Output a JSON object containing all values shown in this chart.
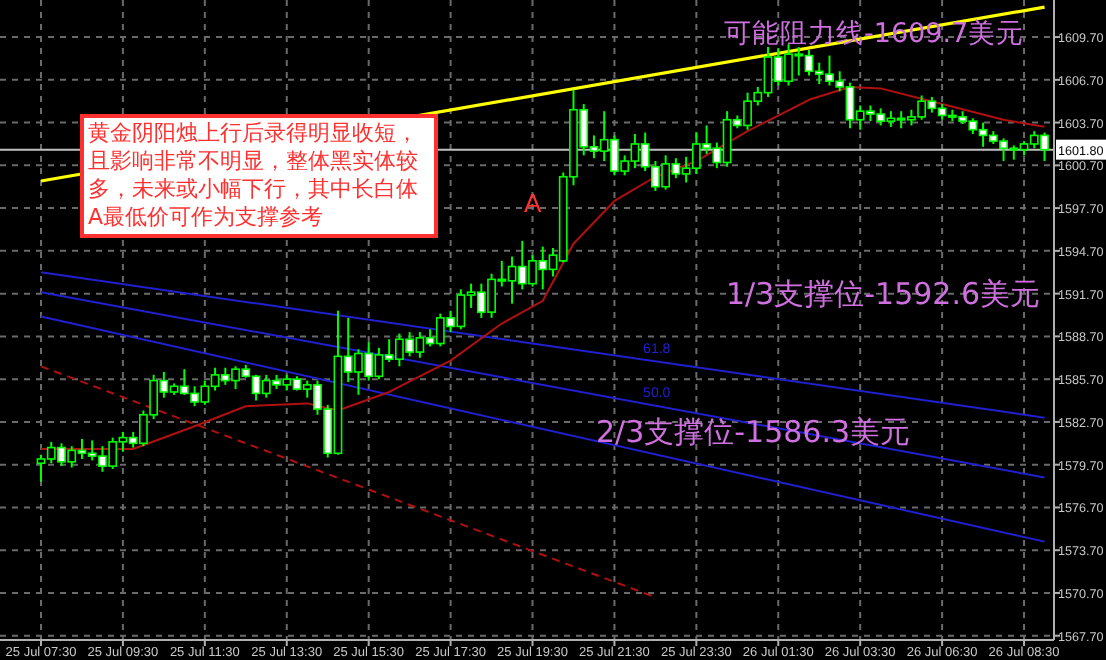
{
  "chart_data": {
    "type": "candlestick",
    "color": "#00ff00",
    "categories": [
      "25 Jul 07:30",
      null,
      null,
      null,
      null,
      null,
      null,
      null,
      "25 Jul 09:30",
      null,
      null,
      null,
      null,
      null,
      null,
      null,
      "25 Jul 11:30",
      null,
      null,
      null,
      null,
      null,
      null,
      null,
      "25 Jul 13:30",
      null,
      null,
      null,
      null,
      null,
      null,
      null,
      "25 Jul 15:30",
      null,
      null,
      null,
      null,
      null,
      null,
      null,
      "25 Jul 17:30",
      null,
      null,
      null,
      null,
      null,
      null,
      null,
      "25 Jul 19:30",
      null,
      null,
      null,
      null,
      null,
      null,
      null,
      "25 Jul 21:30",
      null,
      null,
      null,
      null,
      null,
      null,
      null,
      "25 Jul 23:30",
      null,
      null,
      null,
      null,
      null,
      null,
      null,
      "26 Jul 01:30",
      null,
      null,
      null,
      null,
      null,
      null,
      null,
      "26 Jul 03:30",
      null,
      null,
      null,
      null,
      null,
      null,
      null,
      "26 Jul 06:30",
      null,
      null,
      null,
      null,
      null,
      null,
      null,
      "26 Jul 08:30",
      null,
      null
    ],
    "ohlc": [
      [
        1579.8,
        1580.4,
        1578.5,
        1580.1
      ],
      [
        1580.1,
        1581.3,
        1579.8,
        1580.9
      ],
      [
        1580.9,
        1581.2,
        1579.6,
        1579.9
      ],
      [
        1579.9,
        1581.0,
        1579.5,
        1580.7
      ],
      [
        1580.7,
        1581.5,
        1580.1,
        1580.5
      ],
      [
        1580.5,
        1581.4,
        1580.0,
        1580.3
      ],
      [
        1580.3,
        1581.0,
        1579.2,
        1579.6
      ],
      [
        1579.6,
        1581.6,
        1579.4,
        1581.3
      ],
      [
        1581.3,
        1582.0,
        1580.6,
        1581.6
      ],
      [
        1581.6,
        1582.0,
        1580.9,
        1581.2
      ],
      [
        1581.2,
        1583.5,
        1581.0,
        1583.2
      ],
      [
        1583.2,
        1586.0,
        1582.9,
        1585.6
      ],
      [
        1585.6,
        1586.2,
        1584.4,
        1584.8
      ],
      [
        1584.8,
        1585.4,
        1584.6,
        1585.2
      ],
      [
        1585.2,
        1586.4,
        1584.6,
        1584.7
      ],
      [
        1584.7,
        1585.2,
        1583.8,
        1584.1
      ],
      [
        1584.1,
        1585.6,
        1583.9,
        1585.2
      ],
      [
        1585.2,
        1586.5,
        1584.9,
        1586.0
      ],
      [
        1586.0,
        1586.5,
        1585.3,
        1585.6
      ],
      [
        1585.6,
        1586.6,
        1585.0,
        1586.4
      ],
      [
        1586.4,
        1586.7,
        1585.8,
        1585.9
      ],
      [
        1585.9,
        1586.0,
        1584.2,
        1584.7
      ],
      [
        1584.7,
        1586.0,
        1584.4,
        1585.6
      ],
      [
        1585.6,
        1586.0,
        1585.0,
        1585.3
      ],
      [
        1585.3,
        1586.0,
        1584.9,
        1585.7
      ],
      [
        1585.7,
        1585.9,
        1584.9,
        1585.0
      ],
      [
        1585.0,
        1585.6,
        1584.4,
        1585.3
      ],
      [
        1585.3,
        1585.6,
        1583.2,
        1583.6
      ],
      [
        1583.6,
        1583.9,
        1580.2,
        1580.5
      ],
      [
        1580.5,
        1590.5,
        1580.4,
        1587.3
      ],
      [
        1587.3,
        1590.0,
        1585.5,
        1586.2
      ],
      [
        1586.2,
        1587.8,
        1584.6,
        1587.5
      ],
      [
        1587.5,
        1588.3,
        1585.6,
        1585.9
      ],
      [
        1585.9,
        1587.9,
        1585.7,
        1587.4
      ],
      [
        1587.4,
        1588.5,
        1586.9,
        1587.1
      ],
      [
        1587.1,
        1588.9,
        1586.6,
        1588.5
      ],
      [
        1588.5,
        1589.0,
        1587.3,
        1587.6
      ],
      [
        1587.6,
        1589.0,
        1587.2,
        1588.6
      ],
      [
        1588.6,
        1589.2,
        1588.0,
        1588.2
      ],
      [
        1588.2,
        1590.3,
        1588.0,
        1590.0
      ],
      [
        1590.0,
        1590.5,
        1589.0,
        1589.4
      ],
      [
        1589.4,
        1592.0,
        1589.2,
        1591.6
      ],
      [
        1591.6,
        1592.4,
        1590.7,
        1591.8
      ],
      [
        1591.8,
        1592.4,
        1590.0,
        1590.4
      ],
      [
        1590.4,
        1593.1,
        1590.0,
        1592.7
      ],
      [
        1592.7,
        1594.0,
        1592.2,
        1592.6
      ],
      [
        1592.6,
        1594.3,
        1591.0,
        1593.6
      ],
      [
        1593.6,
        1595.4,
        1592.0,
        1592.4
      ],
      [
        1592.4,
        1594.4,
        1592.2,
        1594.0
      ],
      [
        1594.0,
        1595.0,
        1592.0,
        1593.4
      ],
      [
        1593.4,
        1594.9,
        1592.9,
        1594.4
      ],
      [
        1594.0,
        1600.2,
        1593.9,
        1599.9
      ],
      [
        1599.9,
        1606.0,
        1599.3,
        1604.6
      ],
      [
        1604.6,
        1605.0,
        1601.4,
        1602.0
      ],
      [
        1602.0,
        1602.8,
        1601.2,
        1601.7
      ],
      [
        1601.7,
        1604.5,
        1601.0,
        1602.5
      ],
      [
        1602.5,
        1602.8,
        1600.0,
        1600.3
      ],
      [
        1600.3,
        1601.4,
        1600.0,
        1601.0
      ],
      [
        1601.0,
        1602.9,
        1600.5,
        1602.2
      ],
      [
        1602.2,
        1603.0,
        1600.3,
        1600.6
      ],
      [
        1600.6,
        1601.0,
        1598.9,
        1599.2
      ],
      [
        1599.2,
        1601.4,
        1599.0,
        1600.8
      ],
      [
        1600.8,
        1601.2,
        1599.8,
        1600.1
      ],
      [
        1600.1,
        1601.3,
        1599.5,
        1600.5
      ],
      [
        1600.5,
        1603.0,
        1600.1,
        1602.2
      ],
      [
        1602.2,
        1603.5,
        1601.5,
        1601.9
      ],
      [
        1601.9,
        1602.3,
        1600.5,
        1600.9
      ],
      [
        1600.9,
        1604.5,
        1600.6,
        1603.9
      ],
      [
        1603.9,
        1604.2,
        1603.3,
        1603.5
      ],
      [
        1603.5,
        1605.8,
        1603.2,
        1605.2
      ],
      [
        1605.2,
        1606.2,
        1604.9,
        1605.8
      ],
      [
        1605.8,
        1609.0,
        1605.5,
        1608.3
      ],
      [
        1608.3,
        1608.9,
        1606.3,
        1606.6
      ],
      [
        1606.6,
        1609.2,
        1606.3,
        1608.5
      ],
      [
        1608.5,
        1609.0,
        1607.0,
        1608.4
      ],
      [
        1608.4,
        1608.8,
        1607.0,
        1607.3
      ],
      [
        1607.3,
        1607.9,
        1606.4,
        1607.1
      ],
      [
        1607.1,
        1608.4,
        1606.3,
        1606.6
      ],
      [
        1606.6,
        1607.3,
        1605.9,
        1606.2
      ],
      [
        1606.2,
        1606.5,
        1603.3,
        1603.9
      ],
      [
        1603.9,
        1604.9,
        1603.2,
        1604.5
      ],
      [
        1604.5,
        1604.9,
        1603.8,
        1604.3
      ],
      [
        1604.3,
        1604.7,
        1603.5,
        1603.8
      ],
      [
        1603.8,
        1604.5,
        1603.4,
        1604.0
      ],
      [
        1604.0,
        1604.5,
        1603.3,
        1603.9
      ],
      [
        1603.9,
        1604.6,
        1603.5,
        1604.1
      ],
      [
        1604.1,
        1605.6,
        1603.9,
        1605.2
      ],
      [
        1605.2,
        1605.5,
        1604.4,
        1604.7
      ],
      [
        1604.7,
        1605.0,
        1603.9,
        1604.2
      ],
      [
        1604.2,
        1604.6,
        1603.8,
        1604.1
      ],
      [
        1604.1,
        1604.5,
        1603.6,
        1603.8
      ],
      [
        1603.8,
        1604.0,
        1602.9,
        1603.2
      ],
      [
        1603.2,
        1603.7,
        1602.0,
        1602.8
      ],
      [
        1602.8,
        1603.1,
        1602.2,
        1602.4
      ],
      [
        1602.4,
        1602.6,
        1601.0,
        1601.9
      ],
      [
        1601.9,
        1602.1,
        1601.1,
        1601.8
      ],
      [
        1601.8,
        1602.4,
        1601.4,
        1602.2
      ],
      [
        1602.2,
        1603.1,
        1601.9,
        1602.8
      ],
      [
        1602.8,
        1603.0,
        1601.0,
        1601.8
      ]
    ],
    "series": [
      {
        "type": "line",
        "color": "#ffff00",
        "values": [
          1599.6,
          null,
          null,
          null,
          null,
          null,
          null,
          null,
          null,
          null,
          null,
          null,
          null,
          null,
          null,
          null,
          null,
          null,
          null,
          null,
          null,
          null,
          null,
          null,
          null,
          null,
          null,
          null,
          null,
          null,
          null,
          null,
          null,
          null,
          null,
          null,
          null,
          null,
          null,
          null,
          null,
          null,
          null,
          null,
          null,
          null,
          null,
          null,
          null,
          null,
          null,
          null,
          null,
          null,
          null,
          null,
          null,
          null,
          null,
          null,
          null,
          null,
          null,
          null,
          null,
          null,
          null,
          null,
          null,
          null,
          null,
          null,
          null,
          null,
          null,
          null,
          null,
          null,
          null,
          null,
          null,
          null,
          null,
          null,
          null,
          null,
          null,
          null,
          null,
          null,
          null,
          null,
          null,
          null,
          null,
          null,
          null,
          null,
          1611.8
        ]
      },
      {
        "type": "line",
        "name": "61.8",
        "color": "#2020d0",
        "values": [
          1593.2,
          null,
          null,
          null,
          null,
          null,
          null,
          null,
          null,
          null,
          null,
          null,
          null,
          null,
          null,
          null,
          null,
          null,
          null,
          null,
          null,
          null,
          null,
          null,
          null,
          null,
          null,
          null,
          null,
          null,
          null,
          null,
          null,
          null,
          null,
          null,
          null,
          null,
          null,
          null,
          null,
          null,
          null,
          null,
          null,
          null,
          null,
          null,
          null,
          null,
          null,
          null,
          null,
          null,
          null,
          null,
          null,
          null,
          null,
          null,
          null,
          null,
          null,
          null,
          null,
          null,
          null,
          null,
          null,
          null,
          null,
          null,
          null,
          null,
          null,
          null,
          null,
          null,
          null,
          null,
          null,
          null,
          null,
          null,
          null,
          null,
          null,
          null,
          null,
          null,
          null,
          null,
          null,
          null,
          null,
          null,
          null,
          null,
          1583.0
        ]
      },
      {
        "type": "line",
        "name": "50.0",
        "color": "#2020d0",
        "values": [
          1591.8,
          null,
          null,
          null,
          null,
          null,
          null,
          null,
          null,
          null,
          null,
          null,
          null,
          null,
          null,
          null,
          null,
          null,
          null,
          null,
          null,
          null,
          null,
          null,
          null,
          null,
          null,
          null,
          null,
          null,
          null,
          null,
          null,
          null,
          null,
          null,
          null,
          null,
          null,
          null,
          null,
          null,
          null,
          null,
          null,
          null,
          null,
          null,
          null,
          null,
          null,
          null,
          null,
          null,
          null,
          null,
          null,
          null,
          null,
          null,
          null,
          null,
          null,
          null,
          null,
          null,
          null,
          null,
          null,
          null,
          null,
          null,
          null,
          null,
          null,
          null,
          null,
          null,
          null,
          null,
          null,
          null,
          null,
          null,
          null,
          null,
          null,
          null,
          null,
          null,
          null,
          null,
          null,
          null,
          null,
          null,
          null,
          null,
          1578.8
        ]
      },
      {
        "type": "line",
        "color": "#2020d0",
        "values": [
          1590.1,
          null,
          null,
          null,
          null,
          null,
          null,
          null,
          null,
          null,
          null,
          null,
          null,
          null,
          null,
          null,
          null,
          null,
          null,
          null,
          null,
          null,
          null,
          null,
          null,
          null,
          null,
          null,
          null,
          null,
          null,
          null,
          null,
          null,
          null,
          null,
          null,
          null,
          null,
          null,
          null,
          null,
          null,
          null,
          null,
          null,
          null,
          null,
          null,
          null,
          null,
          null,
          null,
          null,
          null,
          null,
          null,
          null,
          null,
          null,
          null,
          null,
          null,
          null,
          null,
          null,
          null,
          null,
          null,
          null,
          null,
          null,
          null,
          null,
          null,
          null,
          null,
          null,
          null,
          null,
          null,
          null,
          null,
          null,
          null,
          null,
          null,
          null,
          null,
          null,
          null,
          null,
          null,
          null,
          null,
          null,
          null,
          null,
          1574.3
        ]
      },
      {
        "type": "line",
        "color": "#b01010",
        "line_style": "dashed",
        "values": [
          1586.6,
          null,
          null,
          null,
          null,
          null,
          null,
          null,
          null,
          null,
          null,
          null,
          null,
          null,
          null,
          null,
          null,
          null,
          null,
          null,
          null,
          null,
          null,
          null,
          null,
          null,
          null,
          null,
          null,
          null,
          null,
          null,
          null,
          null,
          null,
          null,
          null,
          null,
          null,
          null,
          null,
          null,
          null,
          null,
          null,
          null,
          null,
          null,
          null,
          null,
          null,
          null,
          null,
          null,
          null,
          null,
          null,
          null,
          null,
          null,
          1570.4,
          null,
          null,
          null,
          null,
          null,
          null,
          null,
          null,
          null,
          null,
          null,
          null,
          null,
          null,
          null,
          null,
          null,
          null,
          null,
          null,
          null,
          null,
          null,
          null,
          null,
          null,
          null,
          null,
          null,
          null,
          null,
          null,
          null,
          null,
          null,
          null,
          null,
          null
        ]
      },
      {
        "type": "line",
        "color": "#b01010",
        "values": [
          1580.8,
          null,
          null,
          null,
          null,
          null,
          null,
          null,
          null,
          1580.8,
          null,
          null,
          null,
          null,
          null,
          1582.4,
          null,
          null,
          null,
          null,
          1583.8,
          null,
          null,
          null,
          null,
          null,
          1584.0,
          null,
          null,
          1583.5,
          null,
          null,
          null,
          null,
          1584.8,
          null,
          null,
          null,
          null,
          null,
          1587.0,
          null,
          null,
          null,
          null,
          1589.6,
          null,
          null,
          null,
          1591.2,
          null,
          null,
          1595.2,
          null,
          null,
          null,
          1598.2,
          null,
          null,
          null,
          1599.9,
          null,
          null,
          null,
          1601.0,
          null,
          null,
          null,
          null,
          1603.1,
          null,
          null,
          null,
          null,
          null,
          1605.3,
          null,
          null,
          null,
          1606.2,
          null,
          null,
          1606.1,
          null,
          null,
          null,
          null,
          null,
          1605.0,
          null,
          null,
          null,
          null,
          null,
          1603.9,
          null,
          null,
          null,
          1603.4
        ]
      }
    ],
    "ylim": [
      1567.4,
      1612.3
    ],
    "yticks": [
      {
        "value": 1567.7,
        "label": "1567.70"
      },
      {
        "value": 1570.7,
        "label": "1570.70"
      },
      {
        "value": 1573.7,
        "label": "1573.70"
      },
      {
        "value": 1576.7,
        "label": "1576.70"
      },
      {
        "value": 1579.7,
        "label": "1579.70"
      },
      {
        "value": 1582.7,
        "label": "1582.70"
      },
      {
        "value": 1585.7,
        "label": "1585.70"
      },
      {
        "value": 1588.7,
        "label": "1588.70"
      },
      {
        "value": 1591.7,
        "label": "1591.70"
      },
      {
        "value": 1594.7,
        "label": "1594.70"
      },
      {
        "value": 1597.7,
        "label": "1597.70"
      },
      {
        "value": 1600.7,
        "label": "1600.70"
      },
      {
        "value": 1603.7,
        "label": "1603.70"
      },
      {
        "value": 1606.7,
        "label": "1606.70"
      },
      {
        "value": 1609.7,
        "label": "1609.70"
      }
    ],
    "ref_lines": [
      {
        "axis": "y",
        "value": 1601.8,
        "label": "1601.80",
        "color": "#c0c0c0"
      }
    ],
    "grid": true,
    "annotations": [
      "黄金阴阳烛上行后录得明显收短，且影响非常不明显，整体黑实体较多，未来或小幅下行，其中长白体A最低价可作为支撑参考",
      "A",
      "可能阻力线-1609.7美元",
      "1/3支撑位-1592.6美元",
      "2/3支撑位-1586.3美元"
    ]
  }
}
